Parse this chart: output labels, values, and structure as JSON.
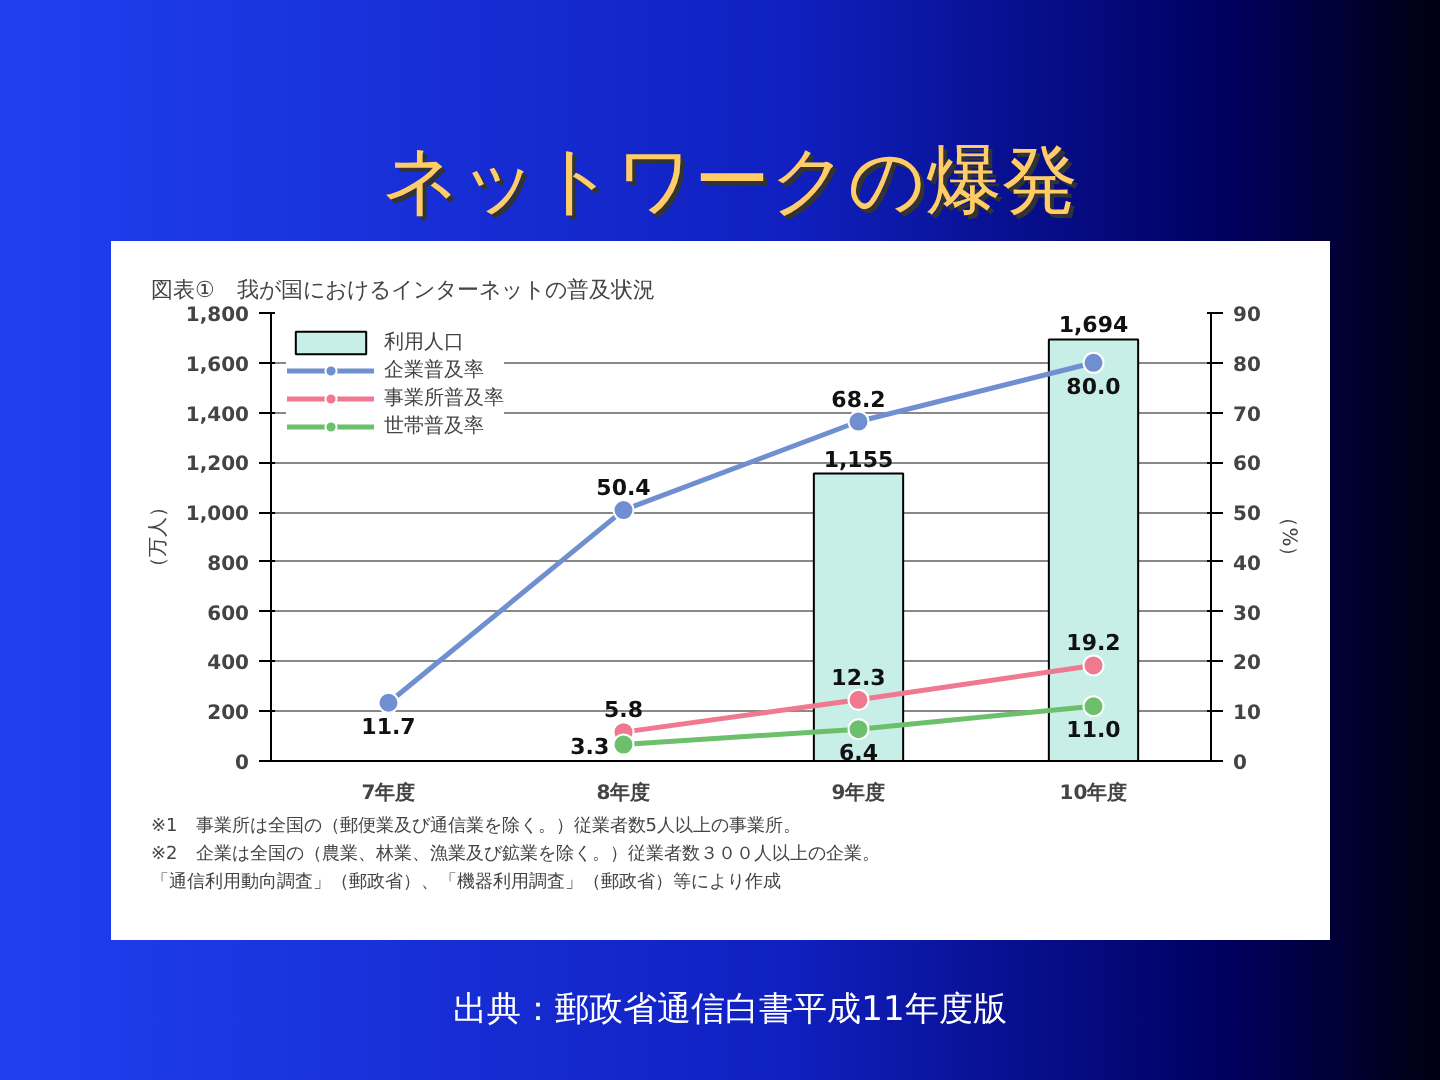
{
  "chart_data": {
    "type": "bar",
    "title": "ネットワークの爆発",
    "subtitle": "図表①　我が国におけるインターネットの普及状況",
    "categories": [
      "7年度",
      "8年度",
      "9年度",
      "10年度"
    ],
    "series": [
      {
        "name": "利用人口",
        "color": "#c8eee8",
        "values": [
          null,
          null,
          1155,
          1694
        ],
        "value_labels": [
          null,
          null,
          "1,155",
          "1,694"
        ]
      },
      {
        "name": "企業普及率",
        "type": "line",
        "axis": "y2",
        "color": "#6f8fd0",
        "values": [
          11.7,
          50.4,
          68.2,
          80.0
        ],
        "value_labels": [
          "11.7",
          "50.4",
          "68.2",
          "80.0"
        ]
      },
      {
        "name": "事業所普及率",
        "type": "line",
        "axis": "y2",
        "color": "#f07890",
        "values": [
          null,
          5.8,
          12.3,
          19.2
        ],
        "value_labels": [
          null,
          "5.8",
          "12.3",
          "19.2"
        ]
      },
      {
        "name": "世帯普及率",
        "type": "line",
        "axis": "y2",
        "color": "#6cc06c",
        "values": [
          null,
          3.3,
          6.4,
          11.0
        ],
        "value_labels": [
          null,
          "3.3",
          "6.4",
          "11.0"
        ]
      }
    ],
    "ylabel": "（万人）",
    "y2label": "（%）",
    "ylim": [
      0,
      1800
    ],
    "yticks": [
      0,
      200,
      400,
      600,
      800,
      {
        "value": 1000,
        "label": "1,000"
      },
      {
        "value": 1200,
        "label": "1,200"
      },
      {
        "value": 1400,
        "label": "1,400"
      },
      {
        "value": 1600,
        "label": "1,600"
      },
      {
        "value": 1800,
        "label": "1,800"
      }
    ],
    "y2lim": [
      0,
      90
    ],
    "y2ticks": [
      0,
      10,
      20,
      30,
      40,
      50,
      60,
      70,
      80,
      90
    ],
    "grid": "y",
    "legend": "top left",
    "marker": "circle",
    "line_style": "solid",
    "annotations": [
      "※1　事業所は全国の（郵便業及び通信業を除く。）従業者数5人以上の事業所。",
      "※2　企業は全国の（農業、林業、漁業及び鉱業を除く。）従業者数３００人以上の企業。",
      "「通信利用動向調査」（郵政省）、「機器利用調査」（郵政省）等により作成",
      "出典：郵政省通信白書平成11年度版"
    ]
  }
}
